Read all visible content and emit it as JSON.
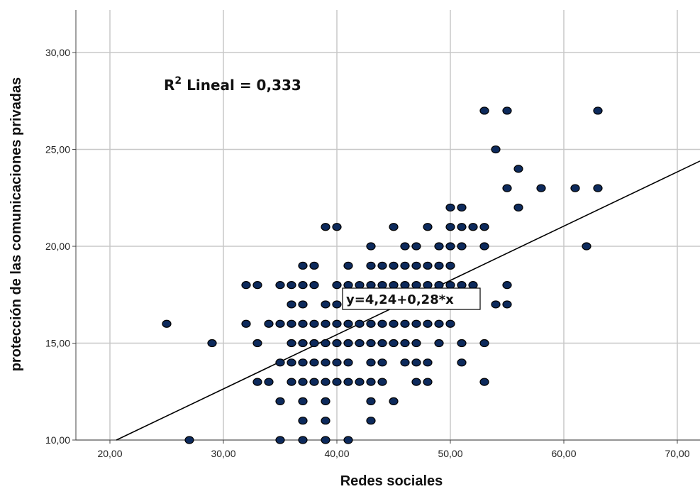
{
  "chart_data": {
    "type": "scatter",
    "xlabel": "Redes sociales",
    "ylabel": "protección de las comunicaciones privadas",
    "xlim": [
      17.0,
      72.0
    ],
    "ylim": [
      10.0,
      32.2
    ],
    "x_ticks": [
      20,
      30,
      40,
      50,
      60,
      70
    ],
    "x_tick_labels": [
      "20,00",
      "30,00",
      "40,00",
      "50,00",
      "60,00",
      "70,00"
    ],
    "y_ticks": [
      10,
      15,
      20,
      25,
      30
    ],
    "y_tick_labels": [
      "10,00",
      "15,00",
      "20,00",
      "25,00",
      "30,00"
    ],
    "grid": true,
    "annotation_r2_prefix": "R",
    "annotation_r2_sup": "2",
    "annotation_r2_rest": " Lineal = 0,333",
    "fit_equation": "y=4,24+0,28*x",
    "fit_line": {
      "intercept": 4.24,
      "slope": 0.28
    },
    "marker_color": "#0d2a5c",
    "marker_edge_color": "#000000",
    "line_color": "#000000",
    "grid_color": "#c8c8c8",
    "points": [
      [
        25,
        16
      ],
      [
        27,
        10
      ],
      [
        29,
        15
      ],
      [
        32,
        18
      ],
      [
        32,
        16
      ],
      [
        33,
        18
      ],
      [
        33,
        15
      ],
      [
        33,
        13
      ],
      [
        34,
        16
      ],
      [
        34,
        13
      ],
      [
        35,
        18
      ],
      [
        35,
        16
      ],
      [
        35,
        14
      ],
      [
        35,
        12
      ],
      [
        35,
        10
      ],
      [
        36,
        18
      ],
      [
        36,
        17
      ],
      [
        36,
        16
      ],
      [
        36,
        15
      ],
      [
        36,
        14
      ],
      [
        36,
        13
      ],
      [
        37,
        19
      ],
      [
        37,
        18
      ],
      [
        37,
        17
      ],
      [
        37,
        16
      ],
      [
        37,
        15
      ],
      [
        37,
        14
      ],
      [
        37,
        13
      ],
      [
        37,
        12
      ],
      [
        37,
        11
      ],
      [
        37,
        10
      ],
      [
        38,
        19
      ],
      [
        38,
        18
      ],
      [
        38,
        16
      ],
      [
        38,
        15
      ],
      [
        38,
        14
      ],
      [
        38,
        13
      ],
      [
        39,
        21
      ],
      [
        39,
        17
      ],
      [
        39,
        16
      ],
      [
        39,
        15
      ],
      [
        39,
        14
      ],
      [
        39,
        13
      ],
      [
        39,
        12
      ],
      [
        39,
        11
      ],
      [
        39,
        10
      ],
      [
        40,
        21
      ],
      [
        40,
        18
      ],
      [
        40,
        17
      ],
      [
        40,
        16
      ],
      [
        40,
        15
      ],
      [
        40,
        14
      ],
      [
        40,
        13
      ],
      [
        41,
        19
      ],
      [
        41,
        18
      ],
      [
        41,
        16
      ],
      [
        41,
        15
      ],
      [
        41,
        14
      ],
      [
        41,
        13
      ],
      [
        41,
        10
      ],
      [
        42,
        18
      ],
      [
        42,
        17
      ],
      [
        42,
        16
      ],
      [
        42,
        15
      ],
      [
        42,
        13
      ],
      [
        43,
        20
      ],
      [
        43,
        19
      ],
      [
        43,
        18
      ],
      [
        43,
        17
      ],
      [
        43,
        16
      ],
      [
        43,
        15
      ],
      [
        43,
        14
      ],
      [
        43,
        13
      ],
      [
        43,
        12
      ],
      [
        43,
        11
      ],
      [
        44,
        19
      ],
      [
        44,
        18
      ],
      [
        44,
        17
      ],
      [
        44,
        16
      ],
      [
        44,
        15
      ],
      [
        44,
        14
      ],
      [
        44,
        13
      ],
      [
        45,
        21
      ],
      [
        45,
        19
      ],
      [
        45,
        18
      ],
      [
        45,
        17
      ],
      [
        45,
        16
      ],
      [
        45,
        15
      ],
      [
        45,
        12
      ],
      [
        46,
        20
      ],
      [
        46,
        19
      ],
      [
        46,
        18
      ],
      [
        46,
        17
      ],
      [
        46,
        16
      ],
      [
        46,
        15
      ],
      [
        46,
        14
      ],
      [
        47,
        20
      ],
      [
        47,
        19
      ],
      [
        47,
        18
      ],
      [
        47,
        17
      ],
      [
        47,
        16
      ],
      [
        47,
        15
      ],
      [
        47,
        14
      ],
      [
        47,
        13
      ],
      [
        48,
        21
      ],
      [
        48,
        19
      ],
      [
        48,
        18
      ],
      [
        48,
        16
      ],
      [
        48,
        14
      ],
      [
        48,
        13
      ],
      [
        49,
        20
      ],
      [
        49,
        19
      ],
      [
        49,
        18
      ],
      [
        49,
        16
      ],
      [
        49,
        15
      ],
      [
        50,
        22
      ],
      [
        50,
        21
      ],
      [
        50,
        20
      ],
      [
        50,
        19
      ],
      [
        50,
        18
      ],
      [
        50,
        16
      ],
      [
        51,
        22
      ],
      [
        51,
        21
      ],
      [
        51,
        20
      ],
      [
        51,
        18
      ],
      [
        51,
        15
      ],
      [
        51,
        14
      ],
      [
        52,
        21
      ],
      [
        52,
        18
      ],
      [
        53,
        27
      ],
      [
        53,
        21
      ],
      [
        53,
        20
      ],
      [
        53,
        15
      ],
      [
        53,
        13
      ],
      [
        54,
        25
      ],
      [
        54,
        17
      ],
      [
        55,
        27
      ],
      [
        55,
        23
      ],
      [
        55,
        18
      ],
      [
        55,
        17
      ],
      [
        56,
        24
      ],
      [
        56,
        22
      ],
      [
        58,
        23
      ],
      [
        61,
        23
      ],
      [
        62,
        20
      ],
      [
        63,
        27
      ],
      [
        63,
        23
      ]
    ]
  }
}
